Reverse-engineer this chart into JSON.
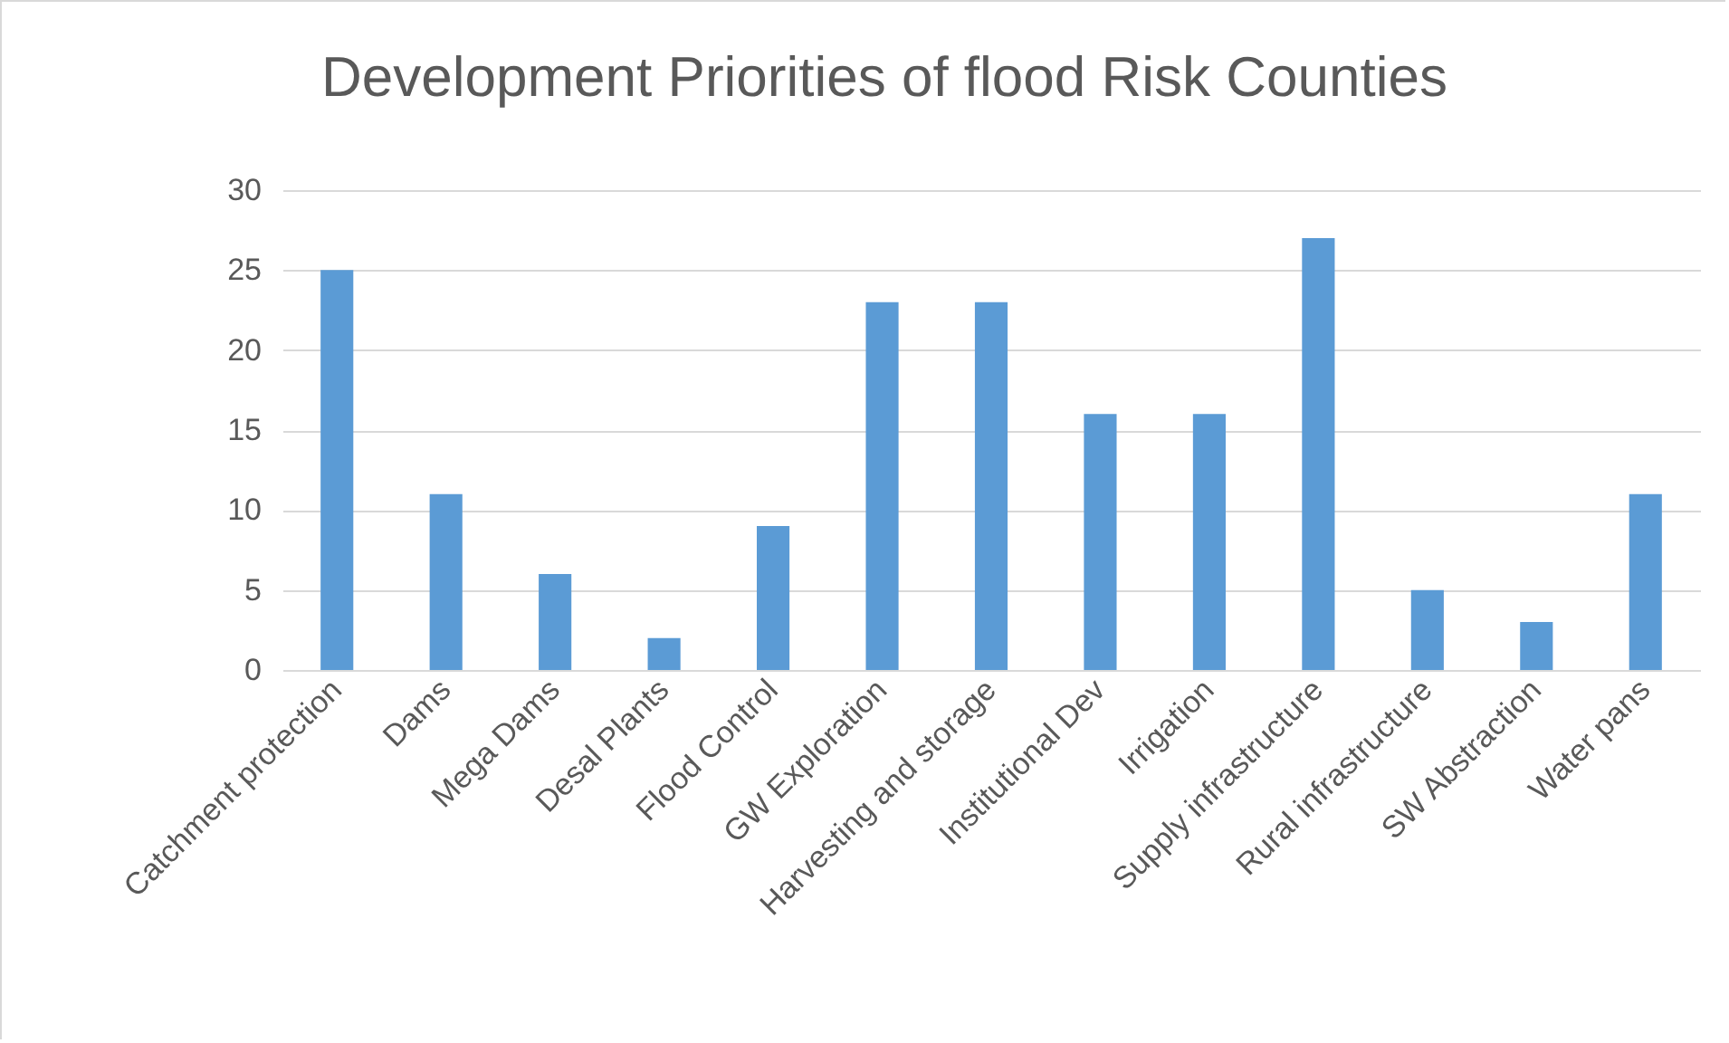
{
  "chart_data": {
    "type": "bar",
    "title": "Development Priorities of flood Risk Counties",
    "categories": [
      "Catchment protection",
      "Dams",
      "Mega Dams",
      "Desal Plants",
      "Flood Control",
      "GW Exploration",
      "Harvesting and storage",
      "Institutional Dev",
      "Irrigation",
      "Supply infrastructure",
      "Rural infrastructure",
      "SW Abstraction",
      "Water pans"
    ],
    "values": [
      25,
      11,
      6,
      2,
      9,
      23,
      23,
      16,
      16,
      27,
      5,
      3,
      11
    ],
    "color": "#5b9bd5",
    "ylim": [
      0,
      30
    ],
    "yticks": [
      0,
      5,
      10,
      15,
      20,
      25,
      30
    ],
    "grid": "y"
  }
}
